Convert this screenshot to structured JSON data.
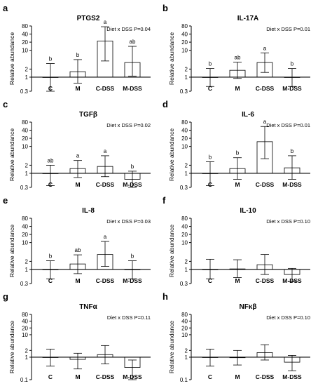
{
  "chart_data": [
    {
      "panel": "a",
      "title": "PTGS2",
      "type": "bar",
      "yscale": "log",
      "ylabel": "Relative abundance",
      "annotation": "Diet x DSS P=0.04",
      "categories": [
        "C",
        "M",
        "C-DSS",
        "M-DSS"
      ],
      "values": [
        1.0,
        1.6,
        22,
        3.5
      ],
      "error_low": [
        0.3,
        0.6,
        4,
        1.1
      ],
      "error_high": [
        3.2,
        4.5,
        75,
        14
      ],
      "letters": [
        "b",
        "b",
        "a",
        "ab"
      ],
      "yticks": [
        0.3,
        1,
        2,
        10,
        20,
        40,
        80
      ],
      "yticklabels": [
        "0.3",
        "1",
        "2",
        "10",
        "20",
        "40",
        "80"
      ],
      "ylim": [
        0.3,
        80
      ]
    },
    {
      "panel": "b",
      "title": "IL-17A",
      "type": "bar",
      "yscale": "log",
      "ylabel": "Relative abundance",
      "annotation": "Diet x DSS P=0.01",
      "categories": [
        "C",
        "M",
        "C-DSS",
        "M-DSS"
      ],
      "values": [
        1.0,
        1.8,
        3.5,
        1.0
      ],
      "error_low": [
        0.45,
        0.9,
        1.5,
        0.45
      ],
      "error_high": [
        2.1,
        3.6,
        8,
        2.1
      ],
      "letters": [
        "b",
        "ab",
        "a",
        "b"
      ],
      "yticks": [
        0.3,
        1,
        2,
        10,
        20,
        40,
        80
      ],
      "yticklabels": [
        "0.3",
        "1",
        "2",
        "10",
        "20",
        "40",
        "80"
      ],
      "ylim": [
        0.3,
        80
      ]
    },
    {
      "panel": "c",
      "title": "TGFβ",
      "type": "bar",
      "yscale": "log",
      "ylabel": "Relative abundance",
      "annotation": "Diet x DSS P=0.02",
      "categories": [
        "C",
        "M",
        "C-DSS",
        "M-DSS"
      ],
      "values": [
        1.0,
        1.5,
        1.8,
        0.6
      ],
      "error_low": [
        0.35,
        0.7,
        0.75,
        0.3
      ],
      "error_high": [
        2.0,
        3.0,
        4.5,
        1.2
      ],
      "letters": [
        "ab",
        "a",
        "a",
        "b"
      ],
      "yticks": [
        0.3,
        1,
        2,
        10,
        20,
        40,
        80
      ],
      "yticklabels": [
        "0.3",
        "1",
        "2",
        "10",
        "20",
        "40",
        "80"
      ],
      "ylim": [
        0.3,
        80
      ]
    },
    {
      "panel": "d",
      "title": "IL-6",
      "type": "bar",
      "yscale": "log",
      "ylabel": "Relative abundance",
      "annotation": "Diet x DSS P=0.01",
      "categories": [
        "C",
        "M",
        "C-DSS",
        "M-DSS"
      ],
      "values": [
        1.0,
        1.5,
        15,
        1.6
      ],
      "error_low": [
        0.35,
        0.6,
        3.5,
        0.6
      ],
      "error_high": [
        2.7,
        3.8,
        55,
        4.5
      ],
      "letters": [
        "b",
        "b",
        "a",
        "b"
      ],
      "yticks": [
        0.3,
        1,
        2,
        10,
        20,
        40,
        80
      ],
      "yticklabels": [
        "0.3",
        "1",
        "2",
        "10",
        "20",
        "40",
        "80"
      ],
      "ylim": [
        0.3,
        80
      ]
    },
    {
      "panel": "e",
      "title": "IL-8",
      "type": "bar",
      "yscale": "log",
      "ylabel": "Relative abundance",
      "annotation": "Diet x DSS P=0.03",
      "categories": [
        "C",
        "M",
        "C-DSS",
        "M-DSS"
      ],
      "values": [
        1.0,
        1.6,
        3.6,
        1.0
      ],
      "error_low": [
        0.45,
        0.7,
        1.3,
        0.45
      ],
      "error_high": [
        2.1,
        3.5,
        11,
        2.1
      ],
      "letters": [
        "b",
        "ab",
        "a",
        "b"
      ],
      "yticks": [
        0.3,
        1,
        2,
        10,
        20,
        40,
        80
      ],
      "yticklabels": [
        "0.3",
        "1",
        "2",
        "10",
        "20",
        "40",
        "80"
      ],
      "ylim": [
        0.3,
        80
      ]
    },
    {
      "panel": "f",
      "title": "IL-10",
      "type": "bar",
      "yscale": "log",
      "ylabel": "Relative abundance",
      "annotation": "Diet x DSS P=0.10",
      "categories": [
        "C",
        "M",
        "C-DSS",
        "M-DSS"
      ],
      "values": [
        1.0,
        1.05,
        1.5,
        0.65
      ],
      "error_low": [
        0.45,
        0.5,
        0.65,
        0.35
      ],
      "error_high": [
        2.4,
        2.3,
        3.6,
        1.1
      ],
      "letters": [
        "",
        "",
        "",
        ""
      ],
      "yticks": [
        0.3,
        1,
        2,
        10,
        20,
        40,
        80
      ],
      "yticklabels": [
        "0.3",
        "1",
        "2",
        "10",
        "20",
        "40",
        "80"
      ],
      "ylim": [
        0.3,
        80
      ]
    },
    {
      "panel": "g",
      "title": "TNFα",
      "type": "bar",
      "yscale": "log",
      "ylabel": "Relative abundance",
      "annotation": "Diet x DSS P=0.11",
      "categories": [
        "C",
        "M",
        "C-DSS",
        "M-DSS"
      ],
      "values": [
        1.0,
        0.8,
        1.3,
        0.35
      ],
      "error_low": [
        0.4,
        0.3,
        0.5,
        0.1
      ],
      "error_high": [
        2.3,
        1.5,
        3.3,
        0.75
      ],
      "letters": [
        "",
        "",
        "",
        ""
      ],
      "yticks": [
        0.1,
        1,
        2,
        10,
        20,
        40,
        80
      ],
      "yticklabels": [
        "0.1",
        "1",
        "2",
        "10",
        "20",
        "40",
        "80"
      ],
      "ylim": [
        0.1,
        80
      ]
    },
    {
      "panel": "h",
      "title": "NFκβ",
      "type": "bar",
      "yscale": "log",
      "ylabel": "Relative abundance",
      "annotation": "Diet x DSS P=0.10",
      "categories": [
        "C",
        "M",
        "C-DSS",
        "M-DSS"
      ],
      "values": [
        1.0,
        0.95,
        1.6,
        0.6
      ],
      "error_low": [
        0.4,
        0.45,
        0.75,
        0.25
      ],
      "error_high": [
        2.3,
        2.0,
        3.6,
        1.2
      ],
      "letters": [
        "",
        "",
        "",
        ""
      ],
      "yticks": [
        0.1,
        1,
        2,
        10,
        20,
        40,
        80
      ],
      "yticklabels": [
        "0.1",
        "1",
        "2",
        "10",
        "20",
        "40",
        "80"
      ],
      "ylim": [
        0.1,
        80
      ]
    }
  ]
}
